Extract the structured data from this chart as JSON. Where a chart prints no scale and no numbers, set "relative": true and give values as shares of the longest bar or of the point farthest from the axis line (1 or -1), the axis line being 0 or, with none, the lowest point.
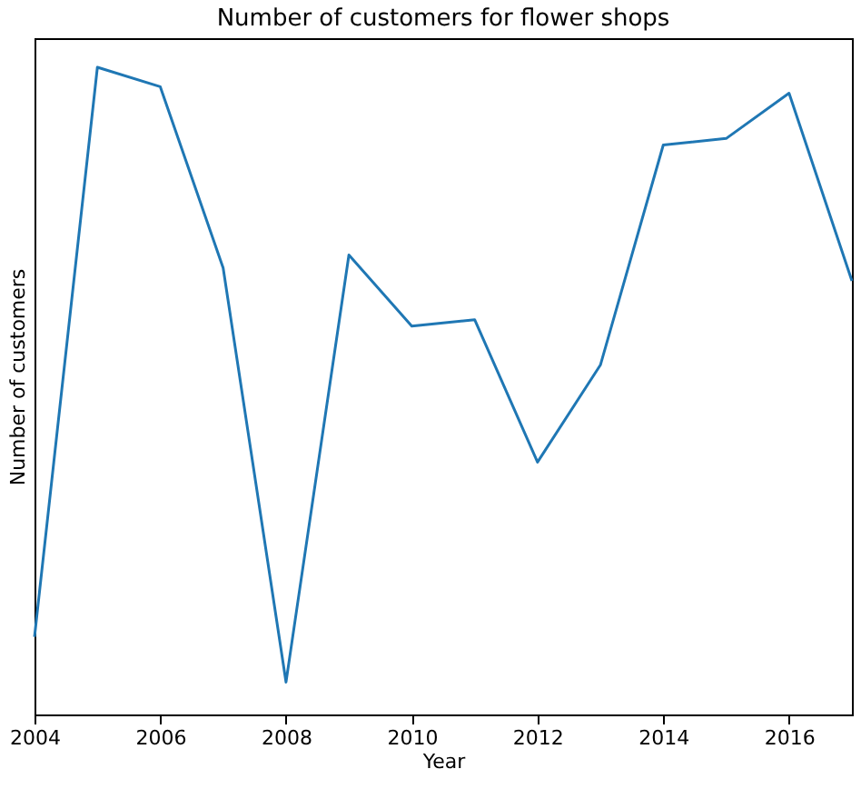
{
  "chart_data": {
    "type": "line",
    "title": "Number of customers for flower shops",
    "xlabel": "Year",
    "ylabel": "Number of customers",
    "relative": true,
    "x": [
      2004,
      2005,
      2006,
      2007,
      2008,
      2009,
      2010,
      2011,
      2012,
      2013,
      2014,
      2015,
      2016,
      2017
    ],
    "series": [
      {
        "color": "#1f77b4",
        "values": [
          0.12,
          1,
          0.97,
          0.69,
          0.05,
          0.71,
          0.6,
          0.61,
          0.39,
          0.54,
          0.88,
          0.89,
          0.96,
          0.67
        ]
      }
    ],
    "xlim": [
      2004,
      2017
    ],
    "xticks": [
      2004,
      2006,
      2008,
      2010,
      2012,
      2014,
      2016
    ],
    "grid": false,
    "legend": false,
    "marker": "none",
    "line_style": "solid"
  }
}
